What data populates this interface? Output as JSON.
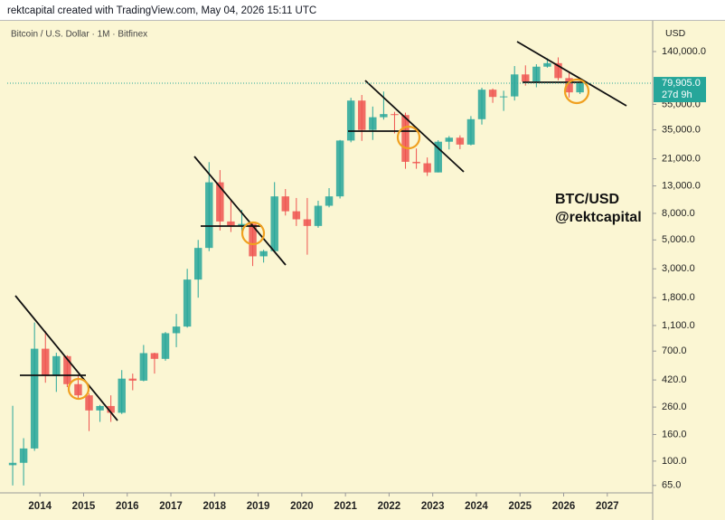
{
  "header": "rektcapital created with TradingView.com, May 04, 2026 15:11 UTC",
  "chart_data": {
    "type": "candlestick",
    "title": "Bitcoin / U.S. Dollar · 1M · Bitfinex",
    "currency": "USD",
    "annotations": [
      "BTC/USD",
      "@rektcapital"
    ],
    "log_scale": true,
    "up_color": "#26a69a",
    "down_color": "#ef5350",
    "xlim": [
      2013.25,
      2028.04
    ],
    "xticks": [
      2014,
      2015,
      2016,
      2017,
      2018,
      2019,
      2020,
      2021,
      2022,
      2023,
      2024,
      2025,
      2026,
      2027
    ],
    "ylim": [
      57,
      245000
    ],
    "yticks": [
      {
        "value": 140000,
        "label": "140,000.0"
      },
      {
        "value": 55000,
        "label": "55,000.0"
      },
      {
        "value": 35000,
        "label": "35,000.0"
      },
      {
        "value": 21000,
        "label": "21,000.0"
      },
      {
        "value": 13000,
        "label": "13,000.0"
      },
      {
        "value": 8000,
        "label": "8,000.0"
      },
      {
        "value": 5000,
        "label": "5,000.0"
      },
      {
        "value": 3000,
        "label": "3,000.0"
      },
      {
        "value": 1800,
        "label": "1,800.0"
      },
      {
        "value": 1100,
        "label": "1,100.0"
      },
      {
        "value": 700,
        "label": "700.0"
      },
      {
        "value": 420,
        "label": "420.0"
      },
      {
        "value": 260,
        "label": "260.0"
      },
      {
        "value": 160,
        "label": "160.0"
      },
      {
        "value": 100,
        "label": "100.0"
      },
      {
        "value": 65,
        "label": "65.0"
      }
    ],
    "last_price": {
      "value": 79905,
      "label": "79,905.0",
      "countdown": "27d 9h"
    },
    "x": [
      2013.375,
      2013.625,
      2013.875,
      2014.125,
      2014.375,
      2014.625,
      2014.875,
      2015.125,
      2015.375,
      2015.625,
      2015.875,
      2016.125,
      2016.375,
      2016.625,
      2016.875,
      2017.125,
      2017.375,
      2017.625,
      2017.875,
      2018.125,
      2018.375,
      2018.625,
      2018.875,
      2019.125,
      2019.375,
      2019.625,
      2019.875,
      2020.125,
      2020.375,
      2020.625,
      2020.875,
      2021.125,
      2021.375,
      2021.625,
      2021.875,
      2022.125,
      2022.375,
      2022.625,
      2022.875,
      2023.125,
      2023.375,
      2023.625,
      2023.875,
      2024.125,
      2024.375,
      2024.625,
      2024.875,
      2025.125,
      2025.375,
      2025.625,
      2025.875,
      2026.125,
      2026.375
    ],
    "open": [
      93,
      97,
      125,
      730,
      450,
      640,
      390,
      320,
      245,
      265,
      235,
      430,
      415,
      675,
      610,
      960,
      1080,
      2480,
      4340,
      13850,
      6930,
      6390,
      6630,
      3740,
      4100,
      10800,
      8300,
      7200,
      6400,
      9150,
      10800,
      29000,
      58800,
      35000,
      43800,
      46300,
      45500,
      19900,
      19400,
      16500,
      28400,
      30500,
      27000,
      42300,
      71300,
      62700,
      63300,
      93400,
      82500,
      107100,
      114000,
      87500,
      68000
    ],
    "high": [
      266,
      150,
      1160,
      1000,
      680,
      650,
      460,
      330,
      270,
      320,
      500,
      470,
      780,
      680,
      980,
      1350,
      3000,
      5000,
      19800,
      17200,
      9990,
      8500,
      6850,
      4200,
      13900,
      12300,
      10500,
      10500,
      10000,
      12500,
      29300,
      61800,
      64900,
      52900,
      69000,
      48200,
      47500,
      25200,
      21500,
      29200,
      31400,
      31800,
      44700,
      73800,
      72800,
      70000,
      108300,
      109600,
      111900,
      124500,
      126200,
      97000,
      81000
    ],
    "low": [
      65,
      65,
      120,
      400,
      340,
      370,
      300,
      170,
      200,
      200,
      230,
      350,
      410,
      470,
      590,
      750,
      1060,
      1800,
      4100,
      5900,
      5750,
      5850,
      3150,
      3350,
      4050,
      7700,
      6400,
      3850,
      6200,
      8900,
      10400,
      28100,
      28800,
      29300,
      42000,
      32900,
      17600,
      17600,
      15500,
      16500,
      24800,
      24900,
      26600,
      38500,
      56500,
      49000,
      58900,
      76600,
      74400,
      105200,
      84000,
      62000,
      66000
    ],
    "close": [
      97,
      125,
      730,
      450,
      640,
      390,
      320,
      245,
      265,
      235,
      430,
      415,
      675,
      610,
      960,
      1080,
      2480,
      4340,
      13850,
      6930,
      6390,
      6630,
      3740,
      4100,
      10800,
      8300,
      7200,
      6400,
      9150,
      10800,
      29000,
      58800,
      35000,
      43800,
      46300,
      45500,
      19900,
      19400,
      16500,
      28400,
      30500,
      27000,
      42300,
      71300,
      62700,
      63300,
      93400,
      82500,
      107100,
      114000,
      87500,
      68000,
      79905
    ]
  }
}
